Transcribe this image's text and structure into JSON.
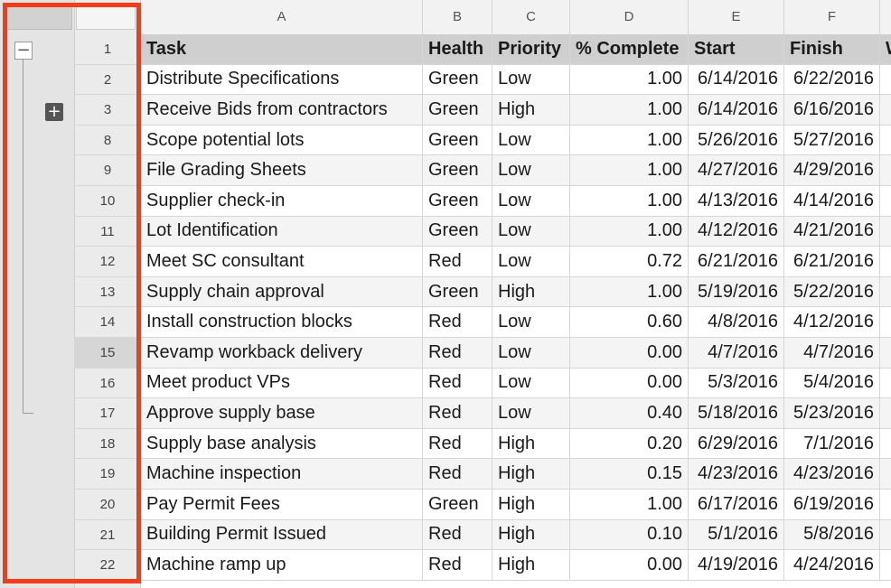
{
  "columns": [
    "A",
    "B",
    "C",
    "D",
    "E",
    "F",
    ""
  ],
  "header_cells": [
    "Task",
    "Health",
    "Priority",
    "% Complete",
    "Start",
    "Finish",
    "W"
  ],
  "header_row_number": "1",
  "rows": [
    {
      "num": "2",
      "task": "Distribute Specifications",
      "health": "Green",
      "priority": "Low",
      "complete": "1.00",
      "start": "6/14/2016",
      "finish": "6/22/2016"
    },
    {
      "num": "3",
      "task": "Receive Bids from contractors",
      "health": "Green",
      "priority": "High",
      "complete": "1.00",
      "start": "6/14/2016",
      "finish": "6/16/2016"
    },
    {
      "num": "8",
      "task": "Scope potential lots",
      "health": "Green",
      "priority": "Low",
      "complete": "1.00",
      "start": "5/26/2016",
      "finish": "5/27/2016"
    },
    {
      "num": "9",
      "task": "File Grading Sheets",
      "health": "Green",
      "priority": "Low",
      "complete": "1.00",
      "start": "4/27/2016",
      "finish": "4/29/2016"
    },
    {
      "num": "10",
      "task": "Supplier check-in",
      "health": "Green",
      "priority": "Low",
      "complete": "1.00",
      "start": "4/13/2016",
      "finish": "4/14/2016"
    },
    {
      "num": "11",
      "task": "Lot Identification",
      "health": "Green",
      "priority": "Low",
      "complete": "1.00",
      "start": "4/12/2016",
      "finish": "4/21/2016"
    },
    {
      "num": "12",
      "task": "Meet SC consultant",
      "health": "Red",
      "priority": "Low",
      "complete": "0.72",
      "start": "6/21/2016",
      "finish": "6/21/2016"
    },
    {
      "num": "13",
      "task": "Supply chain approval",
      "health": "Green",
      "priority": "High",
      "complete": "1.00",
      "start": "5/19/2016",
      "finish": "5/22/2016"
    },
    {
      "num": "14",
      "task": "Install construction blocks",
      "health": "Red",
      "priority": "Low",
      "complete": "0.60",
      "start": "4/8/2016",
      "finish": "4/12/2016"
    },
    {
      "num": "15",
      "task": "Revamp workback delivery",
      "health": "Red",
      "priority": "Low",
      "complete": "0.00",
      "start": "4/7/2016",
      "finish": "4/7/2016"
    },
    {
      "num": "16",
      "task": "Meet product VPs",
      "health": "Red",
      "priority": "Low",
      "complete": "0.00",
      "start": "5/3/2016",
      "finish": "5/4/2016"
    },
    {
      "num": "17",
      "task": "Approve supply base",
      "health": "Red",
      "priority": "Low",
      "complete": "0.40",
      "start": "5/18/2016",
      "finish": "5/23/2016"
    },
    {
      "num": "18",
      "task": "Supply base analysis",
      "health": "Red",
      "priority": "High",
      "complete": "0.20",
      "start": "6/29/2016",
      "finish": "7/1/2016"
    },
    {
      "num": "19",
      "task": "Machine inspection",
      "health": "Red",
      "priority": "High",
      "complete": "0.15",
      "start": "4/23/2016",
      "finish": "4/23/2016"
    },
    {
      "num": "20",
      "task": "Pay Permit Fees",
      "health": "Green",
      "priority": "High",
      "complete": "1.00",
      "start": "6/17/2016",
      "finish": "6/19/2016"
    },
    {
      "num": "21",
      "task": "Building Permit Issued",
      "health": "Red",
      "priority": "High",
      "complete": "0.10",
      "start": "5/1/2016",
      "finish": "5/8/2016"
    },
    {
      "num": "22",
      "task": "Machine ramp up",
      "health": "Red",
      "priority": "High",
      "complete": "0.00",
      "start": "4/19/2016",
      "finish": "4/24/2016"
    }
  ],
  "outline": {
    "collapse_symbol": "−",
    "expand_symbol": "+"
  },
  "selected_row": "15",
  "colors": {
    "highlight": "#f53b17",
    "header_bg": "#cfcfcf",
    "alt_row_bg": "#f4f4f4"
  }
}
